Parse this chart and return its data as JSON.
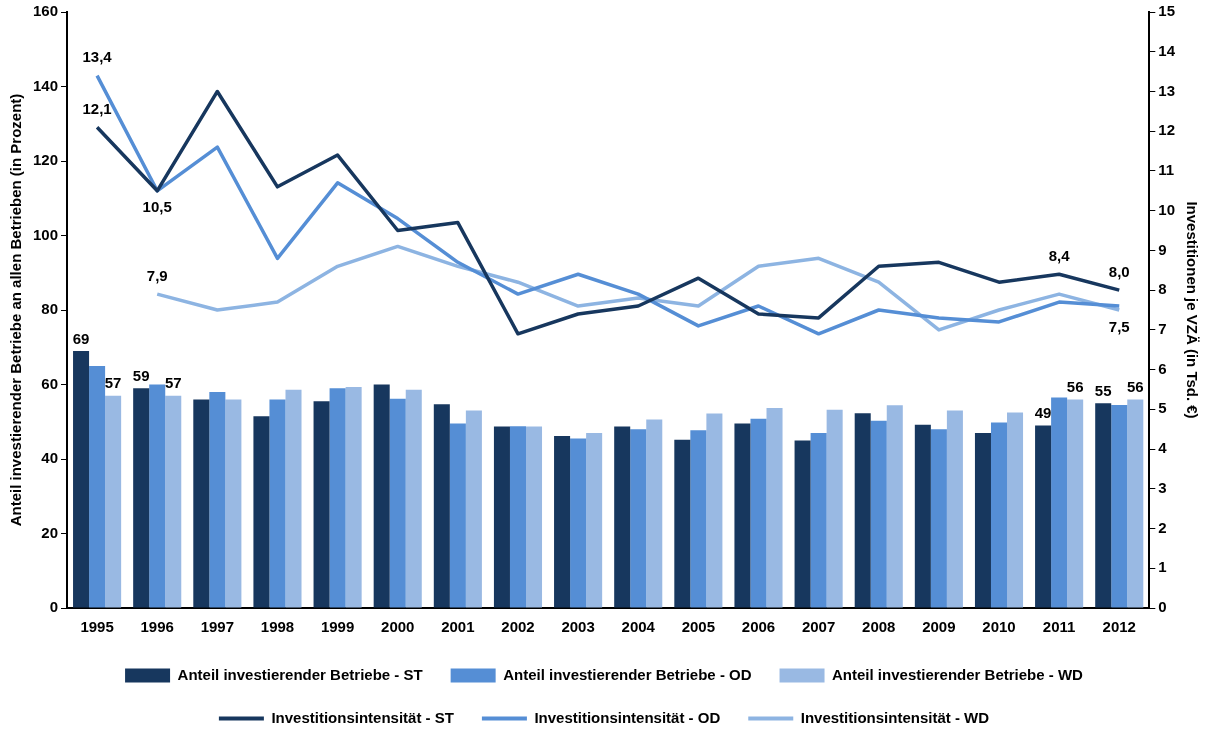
{
  "chart_data": {
    "type": "bar",
    "categories": [
      "1995",
      "1996",
      "1997",
      "1998",
      "1999",
      "2000",
      "2001",
      "2002",
      "2003",
      "2004",
      "2005",
      "2006",
      "2007",
      "2008",
      "2009",
      "2010",
      "2011",
      "2012"
    ],
    "ylabel": "Anteil investierender Betriebe an allen Betrieben (in Prozent)",
    "y2label": "Investitionen je VZÄ (in Tsd. €)",
    "ylim": [
      0,
      160
    ],
    "yticks": [
      0,
      20,
      40,
      60,
      80,
      100,
      120,
      140,
      160
    ],
    "y2lim": [
      0,
      15
    ],
    "y2ticks": [
      0,
      1,
      2,
      3,
      4,
      5,
      6,
      7,
      8,
      9,
      10,
      11,
      12,
      13,
      14,
      15
    ],
    "grid": false,
    "legend": "bottom",
    "marker": "none",
    "series": [
      {
        "name": "Anteil investierender Betriebe - ST",
        "color": "#17375e",
        "values": [
          69,
          59,
          56,
          51.5,
          55.5,
          60,
          54.7,
          48.7,
          46.2,
          48.7,
          45.2,
          49.5,
          45,
          52.3,
          49.2,
          47,
          49,
          55
        ],
        "value_labels": [
          "69",
          "59",
          null,
          null,
          null,
          null,
          null,
          null,
          null,
          null,
          null,
          null,
          null,
          null,
          null,
          null,
          "49",
          "55"
        ]
      },
      {
        "name": "Anteil investierender Betriebe - OD",
        "color": "#558ed5",
        "values": [
          65,
          60,
          58,
          56,
          59,
          56.2,
          49.5,
          48.8,
          45.5,
          48,
          47.7,
          50.8,
          47,
          50.3,
          48,
          49.8,
          56.5,
          54.5
        ]
      },
      {
        "name": "Anteil investierender Betriebe - WD",
        "color": "#99b9e3",
        "values": [
          57,
          57,
          56,
          58.6,
          59.3,
          58.6,
          53,
          48.7,
          47,
          50.6,
          52.2,
          53.7,
          53.2,
          54.4,
          53,
          52.5,
          56,
          56
        ],
        "value_labels": [
          "57",
          "57",
          null,
          null,
          null,
          null,
          null,
          null,
          null,
          null,
          null,
          null,
          null,
          null,
          null,
          null,
          "56",
          "56"
        ]
      },
      {
        "type": "line",
        "axis": "y2",
        "name": "Investitionsintensität - ST",
        "color": "#17375e",
        "values": [
          12.1,
          10.5,
          13.0,
          10.6,
          11.4,
          9.5,
          9.7,
          6.9,
          7.4,
          7.6,
          8.3,
          7.4,
          7.3,
          8.6,
          8.7,
          8.2,
          8.4,
          8.0
        ],
        "value_labels": [
          "12,1",
          null,
          null,
          null,
          null,
          null,
          null,
          null,
          null,
          null,
          null,
          null,
          null,
          null,
          null,
          null,
          "8,4",
          "8,0"
        ]
      },
      {
        "type": "line",
        "axis": "y2",
        "name": "Investitionsintensität - OD",
        "color": "#558ed5",
        "values": [
          13.4,
          10.5,
          11.6,
          8.8,
          10.7,
          9.8,
          8.7,
          7.9,
          8.4,
          7.9,
          7.1,
          7.6,
          6.9,
          7.5,
          7.3,
          7.2,
          7.7,
          7.6
        ],
        "value_labels": [
          "13,4",
          "10,5",
          null,
          null,
          null,
          null,
          null,
          null,
          null,
          null,
          null,
          null,
          null,
          null,
          null,
          null,
          null,
          null
        ]
      },
      {
        "type": "line",
        "axis": "y2",
        "name": "Investitionsintensität - WD",
        "color": "#8db4e2",
        "values": [
          null,
          7.9,
          7.5,
          7.7,
          8.6,
          9.1,
          8.6,
          8.2,
          7.6,
          7.8,
          7.6,
          8.6,
          8.8,
          8.2,
          7.0,
          7.5,
          7.9,
          7.5
        ],
        "value_labels": [
          null,
          "7,9",
          null,
          null,
          null,
          null,
          null,
          null,
          null,
          null,
          null,
          null,
          null,
          null,
          null,
          null,
          null,
          "7,5"
        ]
      }
    ]
  }
}
